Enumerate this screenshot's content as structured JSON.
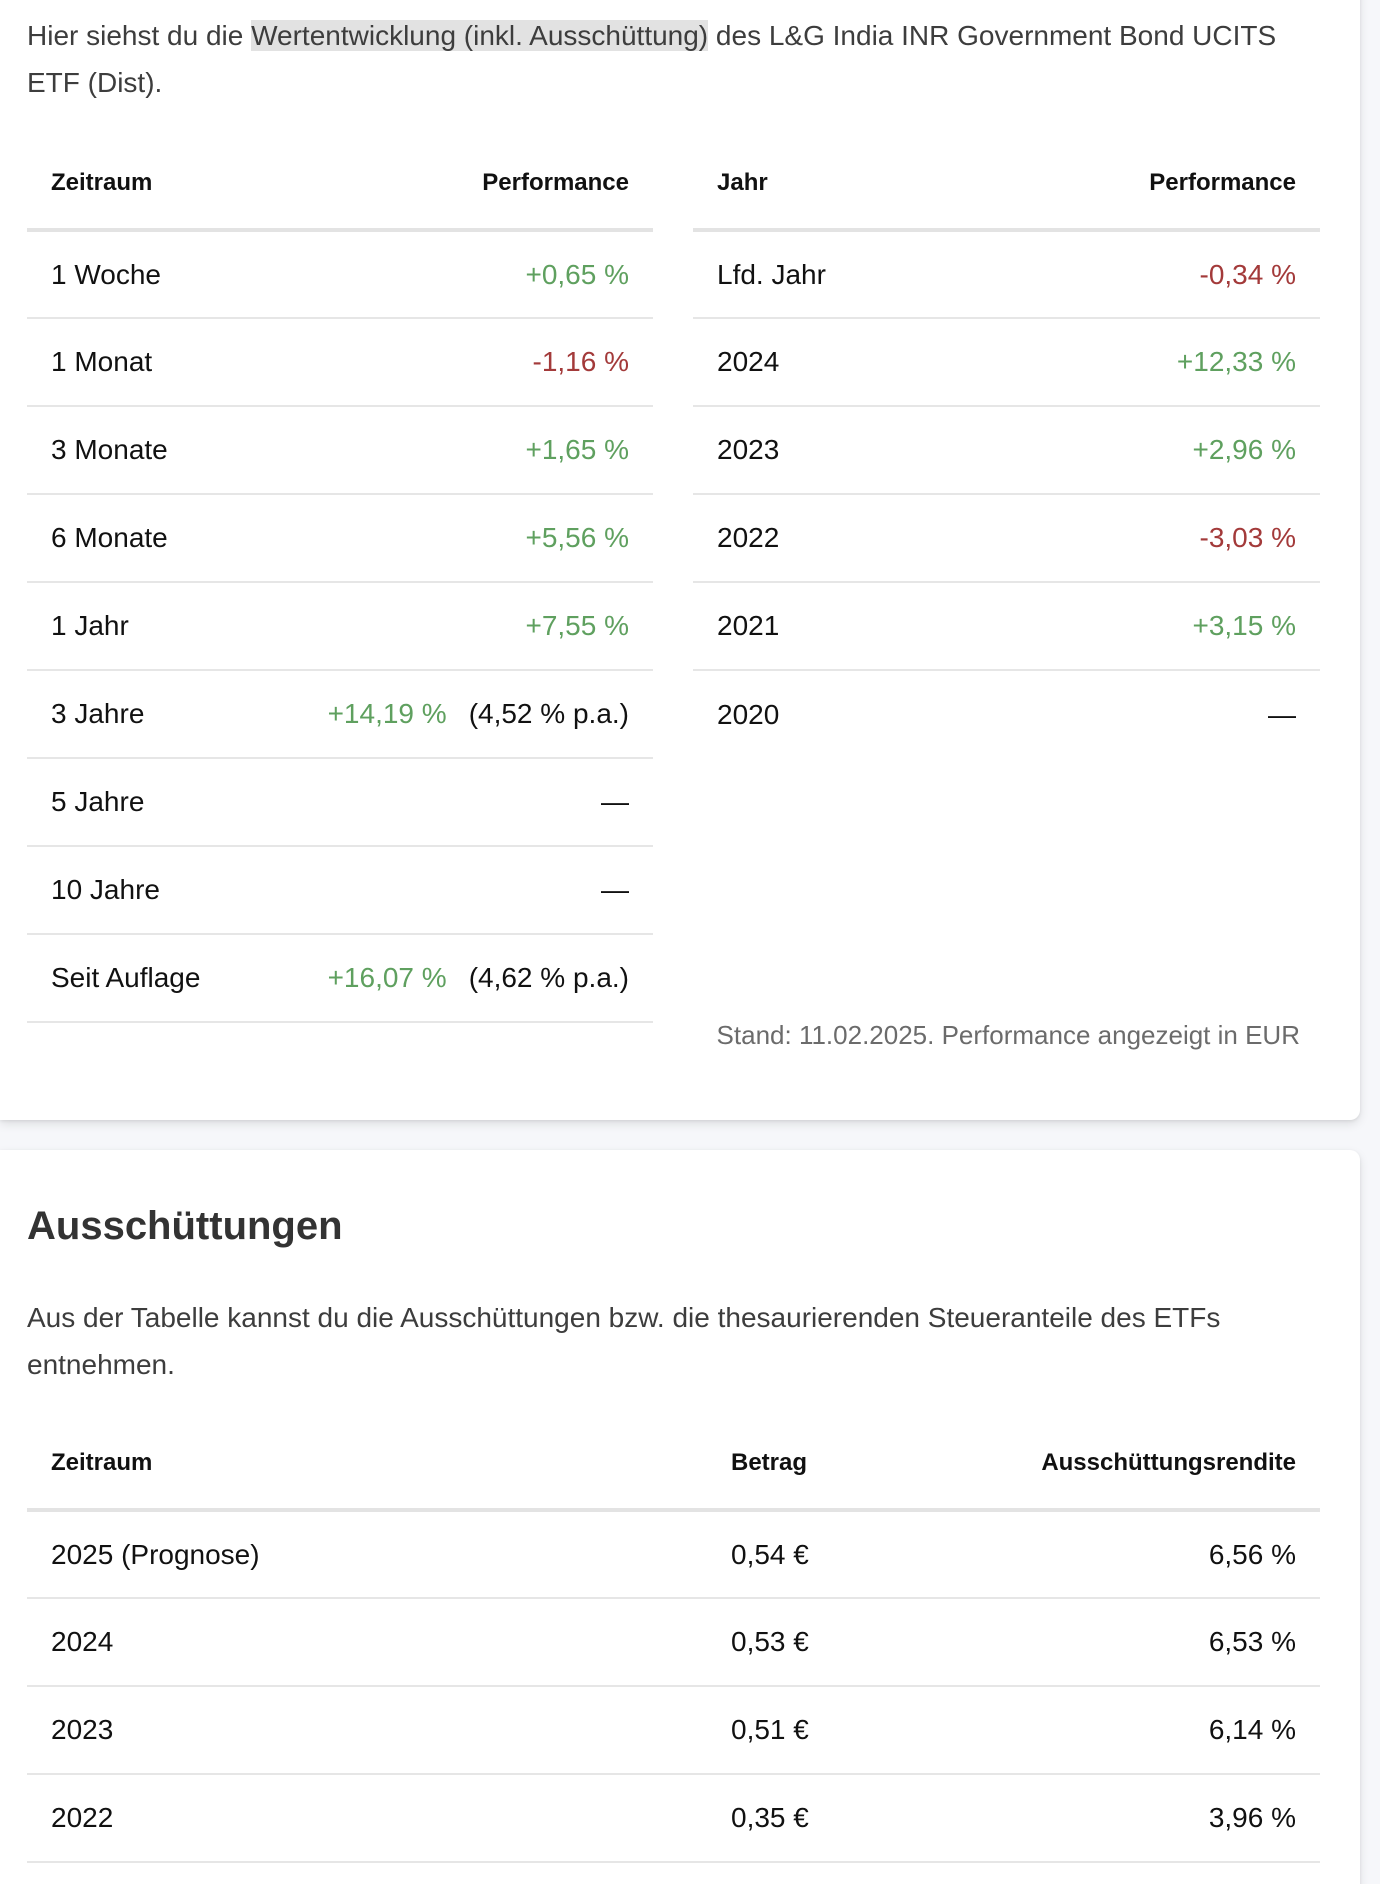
{
  "performance": {
    "intro": {
      "prefix": "Hier siehst du die ",
      "highlight": "Wertentwicklung (inkl. Ausschüttung)",
      "suffix": " des L&G India INR Government Bond UCITS ETF (Dist)."
    },
    "period_table": {
      "headers": {
        "period": "Zeitraum",
        "performance": "Performance"
      },
      "rows": [
        {
          "label": "1 Woche",
          "value": "+0,65 %",
          "pa": "",
          "trend": "pos"
        },
        {
          "label": "1 Monat",
          "value": "-1,16 %",
          "pa": "",
          "trend": "neg"
        },
        {
          "label": "3 Monate",
          "value": "+1,65 %",
          "pa": "",
          "trend": "pos"
        },
        {
          "label": "6 Monate",
          "value": "+5,56 %",
          "pa": "",
          "trend": "pos"
        },
        {
          "label": "1 Jahr",
          "value": "+7,55 %",
          "pa": "",
          "trend": "pos"
        },
        {
          "label": "3 Jahre",
          "value": "+14,19 %",
          "pa": "(4,52 % p.a.)",
          "trend": "pos"
        },
        {
          "label": "5 Jahre",
          "value": "—",
          "pa": "",
          "trend": "neutral"
        },
        {
          "label": "10 Jahre",
          "value": "—",
          "pa": "",
          "trend": "neutral"
        },
        {
          "label": "Seit Auflage",
          "value": "+16,07 %",
          "pa": "(4,62 % p.a.)",
          "trend": "pos"
        }
      ]
    },
    "year_table": {
      "headers": {
        "year": "Jahr",
        "performance": "Performance"
      },
      "rows": [
        {
          "label": "Lfd. Jahr",
          "value": "-0,34 %",
          "trend": "neg"
        },
        {
          "label": "2024",
          "value": "+12,33 %",
          "trend": "pos"
        },
        {
          "label": "2023",
          "value": "+2,96 %",
          "trend": "pos"
        },
        {
          "label": "2022",
          "value": "-3,03 %",
          "trend": "neg"
        },
        {
          "label": "2021",
          "value": "+3,15 %",
          "trend": "pos"
        },
        {
          "label": "2020",
          "value": "—",
          "trend": "neutral"
        }
      ]
    },
    "stand": "Stand: 11.02.2025. Performance angezeigt in EUR"
  },
  "distributions": {
    "title": "Ausschüttungen",
    "description": "Aus der Tabelle kannst du die Ausschüttungen bzw. die thesaurierenden Steueranteile des ETFs entnehmen.",
    "headers": {
      "period": "Zeitraum",
      "amount": "Betrag",
      "yield": "Ausschüttungsrendite"
    },
    "rows": [
      {
        "period": "2025 (Prognose)",
        "amount": "0,54 €",
        "yield": "6,56 %"
      },
      {
        "period": "2024",
        "amount": "0,53 €",
        "yield": "6,53 %"
      },
      {
        "period": "2023",
        "amount": "0,51 €",
        "yield": "6,14 %"
      },
      {
        "period": "2022",
        "amount": "0,35 €",
        "yield": "3,96 %"
      }
    ]
  },
  "colors": {
    "positive": "#5fa05f",
    "negative": "#a33a3a",
    "highlight_bg": "#e2e2e2",
    "page_bg": "#f6f7fa"
  }
}
